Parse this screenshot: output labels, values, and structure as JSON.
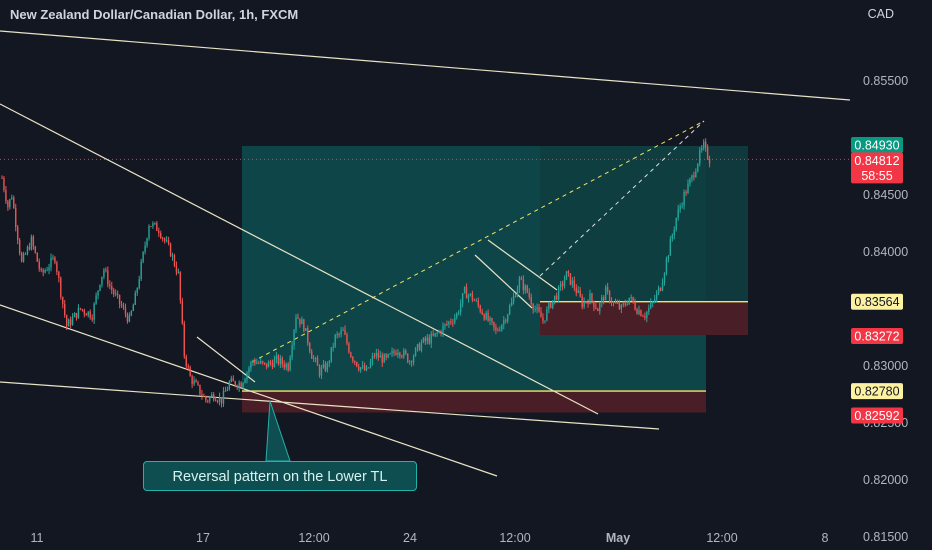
{
  "header": {
    "title": "New Zealand Dollar/Canadian Dollar, 1h, FXCM",
    "currency": "CAD"
  },
  "annotation": {
    "text": "Reversal pattern on the Lower TL"
  },
  "colors": {
    "background": "#131722",
    "candle_up": "#26a69a",
    "candle_down": "#ef5350",
    "trendline": "#e8e3c4",
    "profit_zone": "#0e4d50",
    "loss_zone": "#4a1e26",
    "entry_line": "#f5e661",
    "badge_price": "#f23645",
    "badge_teal": "#089981",
    "badge_yellow": "#fdf1a2"
  },
  "chart_data": {
    "type": "candlestick",
    "instrument": "New Zealand Dollar/Canadian Dollar",
    "timeframe": "1h",
    "source": "FXCM",
    "y_axis": {
      "unit": "CAD",
      "range": [
        0.8142,
        0.8574
      ],
      "ticks": [
        0.855,
        0.845,
        0.84,
        0.83,
        0.825,
        0.82,
        0.815
      ]
    },
    "x_axis": {
      "ticks": [
        "11",
        "17",
        "12:00",
        "24",
        "12:00",
        "May",
        "12:00",
        "8"
      ]
    },
    "close_path": [
      {
        "t": 0,
        "p": 0.8465
      },
      {
        "t": 3,
        "p": 0.844
      },
      {
        "t": 5,
        "p": 0.845
      },
      {
        "t": 10,
        "p": 0.839
      },
      {
        "t": 15,
        "p": 0.841
      },
      {
        "t": 20,
        "p": 0.838
      },
      {
        "t": 27,
        "p": 0.8395
      },
      {
        "t": 33,
        "p": 0.8335
      },
      {
        "t": 40,
        "p": 0.835
      },
      {
        "t": 46,
        "p": 0.8345
      },
      {
        "t": 50,
        "p": 0.8375
      },
      {
        "t": 52,
        "p": 0.8385
      },
      {
        "t": 55,
        "p": 0.837
      },
      {
        "t": 60,
        "p": 0.8355
      },
      {
        "t": 65,
        "p": 0.834
      },
      {
        "t": 68,
        "p": 0.836
      },
      {
        "t": 75,
        "p": 0.8425
      },
      {
        "t": 80,
        "p": 0.842
      },
      {
        "t": 86,
        "p": 0.84
      },
      {
        "t": 90,
        "p": 0.838
      },
      {
        "t": 93,
        "p": 0.831
      },
      {
        "t": 96,
        "p": 0.829
      },
      {
        "t": 100,
        "p": 0.828
      },
      {
        "t": 104,
        "p": 0.827
      },
      {
        "t": 108,
        "p": 0.8275
      },
      {
        "t": 112,
        "p": 0.827
      },
      {
        "t": 116,
        "p": 0.8285
      },
      {
        "t": 122,
        "p": 0.8285
      },
      {
        "t": 128,
        "p": 0.8305
      },
      {
        "t": 134,
        "p": 0.83
      },
      {
        "t": 140,
        "p": 0.8305
      },
      {
        "t": 146,
        "p": 0.83
      },
      {
        "t": 150,
        "p": 0.8345
      },
      {
        "t": 154,
        "p": 0.8335
      },
      {
        "t": 158,
        "p": 0.831
      },
      {
        "t": 162,
        "p": 0.8295
      },
      {
        "t": 166,
        "p": 0.83
      },
      {
        "t": 170,
        "p": 0.8325
      },
      {
        "t": 174,
        "p": 0.833
      },
      {
        "t": 178,
        "p": 0.831
      },
      {
        "t": 182,
        "p": 0.83
      },
      {
        "t": 186,
        "p": 0.8295
      },
      {
        "t": 190,
        "p": 0.831
      },
      {
        "t": 196,
        "p": 0.8305
      },
      {
        "t": 202,
        "p": 0.8315
      },
      {
        "t": 208,
        "p": 0.8305
      },
      {
        "t": 214,
        "p": 0.832
      },
      {
        "t": 220,
        "p": 0.8325
      },
      {
        "t": 226,
        "p": 0.8335
      },
      {
        "t": 232,
        "p": 0.8345
      },
      {
        "t": 236,
        "p": 0.8365
      },
      {
        "t": 240,
        "p": 0.836
      },
      {
        "t": 244,
        "p": 0.835
      },
      {
        "t": 248,
        "p": 0.834
      },
      {
        "t": 252,
        "p": 0.833
      },
      {
        "t": 256,
        "p": 0.834
      },
      {
        "t": 260,
        "p": 0.8355
      },
      {
        "t": 264,
        "p": 0.8375
      },
      {
        "t": 268,
        "p": 0.8365
      },
      {
        "t": 272,
        "p": 0.835
      },
      {
        "t": 276,
        "p": 0.834
      },
      {
        "t": 280,
        "p": 0.8355
      },
      {
        "t": 284,
        "p": 0.8365
      },
      {
        "t": 288,
        "p": 0.838
      },
      {
        "t": 292,
        "p": 0.837
      },
      {
        "t": 296,
        "p": 0.8355
      },
      {
        "t": 300,
        "p": 0.836
      },
      {
        "t": 304,
        "p": 0.835
      },
      {
        "t": 308,
        "p": 0.8365
      },
      {
        "t": 312,
        "p": 0.8355
      },
      {
        "t": 316,
        "p": 0.835
      },
      {
        "t": 320,
        "p": 0.836
      },
      {
        "t": 324,
        "p": 0.835
      },
      {
        "t": 328,
        "p": 0.8345
      },
      {
        "t": 332,
        "p": 0.8355
      },
      {
        "t": 336,
        "p": 0.837
      },
      {
        "t": 340,
        "p": 0.84
      },
      {
        "t": 344,
        "p": 0.843
      },
      {
        "t": 348,
        "p": 0.845
      },
      {
        "t": 352,
        "p": 0.8465
      },
      {
        "t": 356,
        "p": 0.8485
      },
      {
        "t": 358,
        "p": 0.8493
      },
      {
        "t": 359,
        "p": 0.8488
      },
      {
        "t": 361,
        "p": 0.8481
      }
    ],
    "trade_setup": {
      "entry": 0.8278,
      "take_profit": 0.8493,
      "stop_loss": 0.82592,
      "secondary_entry": 0.83564,
      "secondary_stop": 0.83272
    },
    "price_labels": {
      "upper_level": "0.84930",
      "target_level": "0.84930",
      "last_price": "0.84812",
      "countdown": "58:55",
      "entry_2": "0.83564",
      "stop_2": "0.83272",
      "entry_1": "0.82780",
      "stop_1": "0.82592"
    }
  }
}
